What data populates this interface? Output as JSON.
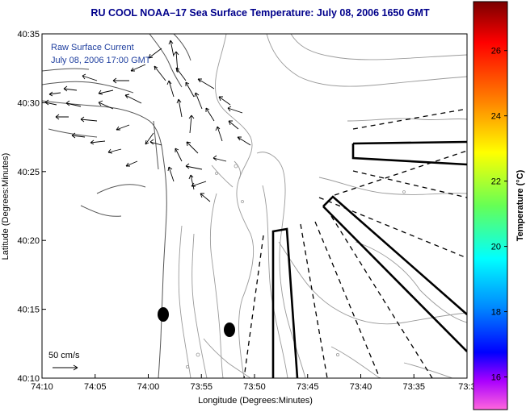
{
  "title": "RU COOL  NOAA–17  Sea Surface Temperature:  July 08, 2006 1650 GMT",
  "inset": {
    "line1": "Raw Surface Current",
    "line2": "July 08, 2006 17:00 GMT"
  },
  "scale_label": "50 cm/s",
  "axes": {
    "xlabel": "Longitude (Degrees:Minutes)",
    "ylabel": "Latitude (Degrees:Minutes)",
    "xticks": [
      "74:10",
      "74:05",
      "74:00",
      "73:55",
      "73:50",
      "73:45",
      "73:40",
      "73:35",
      "73:3"
    ],
    "yticks": [
      "40:35",
      "40:30",
      "40:25",
      "40:20",
      "40:15",
      "40:10"
    ]
  },
  "colorbar": {
    "label": "Temperature (°C)",
    "ticks": [
      "26",
      "24",
      "22",
      "20",
      "18",
      "16"
    ],
    "range": [
      15,
      27.5
    ]
  },
  "colors": {
    "title": "#00008b",
    "inset_text": "#1f3f9f",
    "contour": "#9a9a9a",
    "coast": "#555555"
  }
}
